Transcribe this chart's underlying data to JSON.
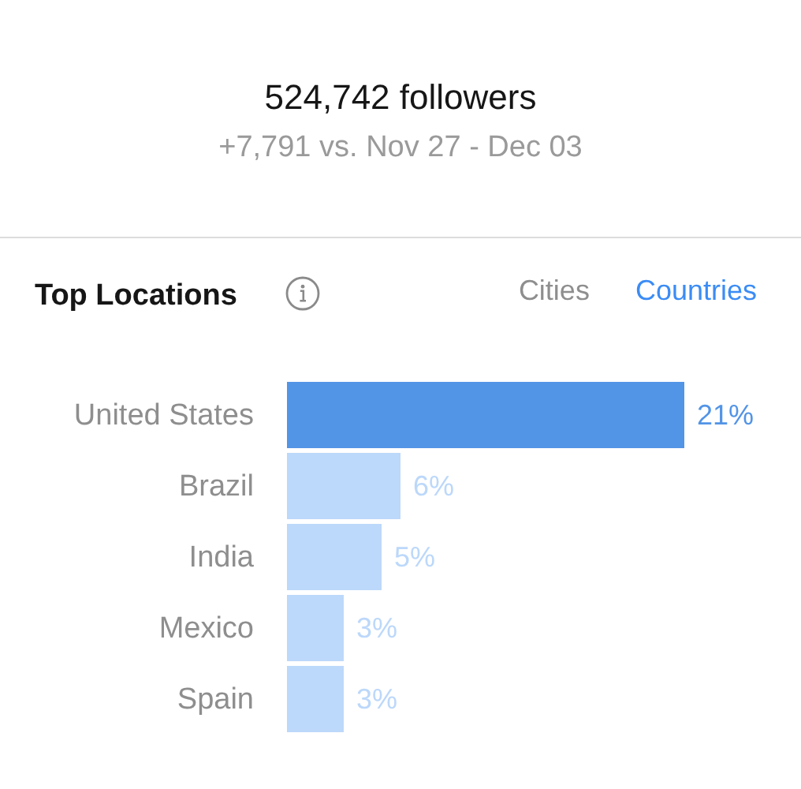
{
  "chart_data": [
    {
      "type": "other",
      "title": "524,742 followers",
      "subtitle": "+7,791 vs. Nov 27 - Dec 03"
    },
    {
      "type": "bar",
      "title": "Top Locations",
      "annotations": [
        "Cities",
        "Countries"
      ],
      "orientation": "horizontal",
      "tick_labels": "y",
      "categories": [
        "United States",
        "Brazil",
        "India",
        "Mexico",
        "Spain"
      ],
      "values": [
        21,
        6,
        5,
        3,
        3
      ],
      "colors": [
        "#5294e6",
        "#bcd8fa",
        "#bcd8fa",
        "#bcd8fa",
        "#bcd8fa"
      ],
      "value_labels": [
        "21%",
        "6%",
        "5%",
        "3%",
        "3%"
      ]
    }
  ]
}
